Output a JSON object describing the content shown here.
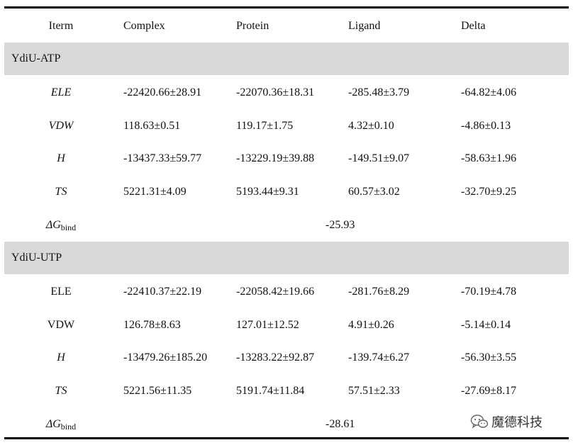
{
  "header": {
    "item": "Iterm",
    "complex": "Complex",
    "protein": "Protein",
    "ligand": "Ligand",
    "delta": "Delta"
  },
  "atp": {
    "title": "YdiU-ATP",
    "rows": [
      {
        "label": "ELE",
        "complex": "-22420.66±28.91",
        "protein": "-22070.36±18.31",
        "ligand": "-285.48±3.79",
        "delta": "-64.82±4.06"
      },
      {
        "label": "VDW",
        "complex": "118.63±0.51",
        "protein": "119.17±1.75",
        "ligand": "4.32±0.10",
        "delta": "-4.86±0.13"
      },
      {
        "label": "H",
        "complex": "-13437.33±59.77",
        "protein": "-13229.19±39.88",
        "ligand": "-149.51±9.07",
        "delta": "-58.63±1.96"
      },
      {
        "label": "TS",
        "complex": "5221.31±4.09",
        "protein": "5193.44±9.31",
        "ligand": "60.57±3.02",
        "delta": "-32.70±9.25"
      }
    ],
    "dg_symbol": "ΔG",
    "dg_sub": "bind",
    "dg_value": "-25.93"
  },
  "utp": {
    "title": "YdiU-UTP",
    "rows": [
      {
        "label": "ELE",
        "complex": "-22410.37±22.19",
        "protein": "-22058.42±19.66",
        "ligand": "-281.76±8.29",
        "delta": "-70.19±4.78"
      },
      {
        "label": "VDW",
        "complex": "126.78±8.63",
        "protein": "127.01±12.52",
        "ligand": "4.91±0.26",
        "delta": "-5.14±0.14"
      },
      {
        "label": "H",
        "complex": "-13479.26±185.20",
        "protein": "-13283.22±92.87",
        "ligand": "-139.74±6.27",
        "delta": "-56.30±3.55"
      },
      {
        "label": "TS",
        "complex": "5221.56±11.35",
        "protein": "5191.74±11.84",
        "ligand": "57.51±2.33",
        "delta": "-27.69±8.17"
      }
    ],
    "dg_symbol": "ΔG",
    "dg_sub": "bind",
    "dg_value": "-28.61"
  },
  "watermark": {
    "text": "魔德科技",
    "icon": "wechat-icon"
  }
}
